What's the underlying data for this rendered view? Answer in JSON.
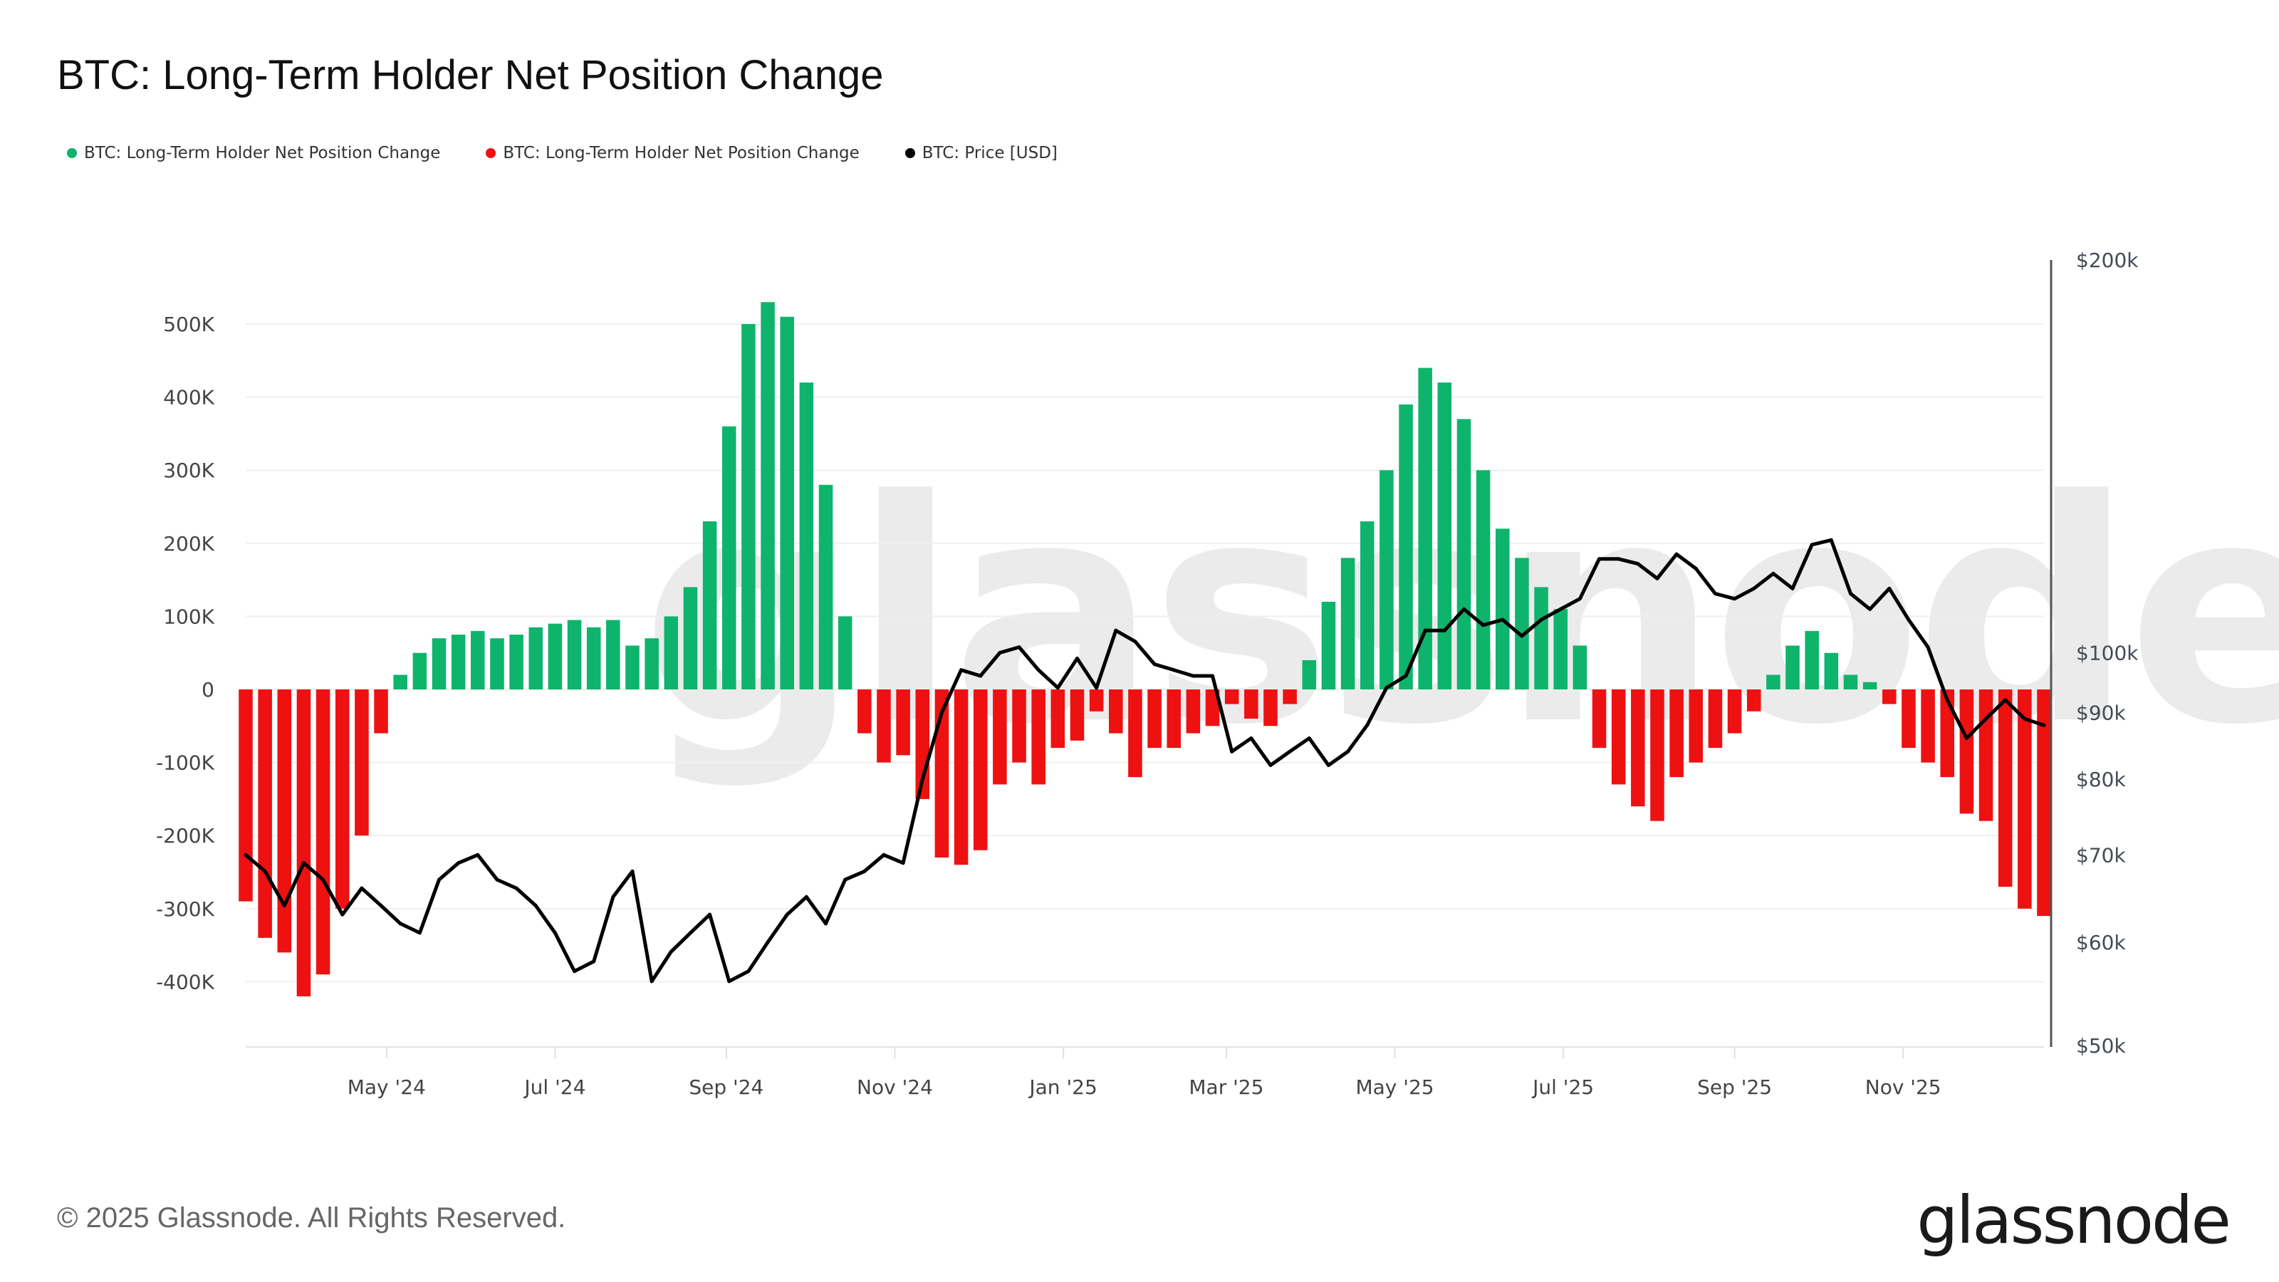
{
  "title": "BTC: Long-Term Holder Net Position Change",
  "legend": [
    {
      "label": "BTC: Long-Term Holder Net Position Change",
      "color": "#0fb46c"
    },
    {
      "label": "BTC: Long-Term Holder Net Position Change",
      "color": "#ee1111"
    },
    {
      "label": "BTC: Price [USD]",
      "color": "#000000"
    }
  ],
  "footer": "© 2025 Glassnode. All Rights Reserved.",
  "logo": "glassnode",
  "watermark": "glassnode",
  "chart_data": {
    "type": "bar",
    "title": "BTC: Long-Term Holder Net Position Change",
    "xlim": [
      "2024-03-11",
      "2025-12-22"
    ],
    "x_ticks": [
      {
        "date": "2024-05-01",
        "label": "May '24"
      },
      {
        "date": "2024-07-01",
        "label": "Jul '24"
      },
      {
        "date": "2024-09-01",
        "label": "Sep '24"
      },
      {
        "date": "2024-11-01",
        "label": "Nov '24"
      },
      {
        "date": "2025-01-01",
        "label": "Jan '25"
      },
      {
        "date": "2025-03-01",
        "label": "Mar '25"
      },
      {
        "date": "2025-05-01",
        "label": "May '25"
      },
      {
        "date": "2025-07-01",
        "label": "Jul '25"
      },
      {
        "date": "2025-09-01",
        "label": "Sep '25"
      },
      {
        "date": "2025-11-01",
        "label": "Nov '25"
      }
    ],
    "y_left": {
      "ylim": [
        -490000,
        600000
      ],
      "ticks": [
        {
          "v": 500000,
          "label": "500K"
        },
        {
          "v": 400000,
          "label": "400K"
        },
        {
          "v": 300000,
          "label": "300K"
        },
        {
          "v": 200000,
          "label": "200K"
        },
        {
          "v": 100000,
          "label": "100K"
        },
        {
          "v": 0,
          "label": "0"
        },
        {
          "v": -100000,
          "label": "-100K"
        },
        {
          "v": -200000,
          "label": "-200K"
        },
        {
          "v": -300000,
          "label": "-300K"
        },
        {
          "v": -400000,
          "label": "-400K"
        }
      ]
    },
    "y_right": {
      "scale": "log",
      "ylim": [
        50000,
        200000
      ],
      "ticks": [
        {
          "v": 200000,
          "label": "$200k"
        },
        {
          "v": 100000,
          "label": "$100k"
        },
        {
          "v": 90000,
          "label": "$90k"
        },
        {
          "v": 80000,
          "label": "$80k"
        },
        {
          "v": 70000,
          "label": "$70k"
        },
        {
          "v": 60000,
          "label": "$60k"
        },
        {
          "v": 50000,
          "label": "$50k"
        }
      ]
    },
    "grid": true,
    "legend_position": "top-left",
    "start_date": "2024-03-11",
    "interval_days": 7,
    "series": [
      {
        "name": "BTC: Long-Term Holder Net Position Change",
        "type": "bar",
        "positive_color": "#0fb46c",
        "negative_color": "#ee1111",
        "values": [
          -290000,
          -340000,
          -360000,
          -420000,
          -390000,
          -300000,
          -200000,
          -60000,
          20000,
          50000,
          70000,
          75000,
          80000,
          70000,
          75000,
          85000,
          90000,
          95000,
          85000,
          95000,
          60000,
          70000,
          100000,
          140000,
          230000,
          360000,
          500000,
          530000,
          510000,
          420000,
          280000,
          100000,
          -60000,
          -100000,
          -90000,
          -150000,
          -230000,
          -240000,
          -220000,
          -130000,
          -100000,
          -130000,
          -80000,
          -70000,
          -30000,
          -60000,
          -120000,
          -80000,
          -80000,
          -60000,
          -50000,
          -20000,
          -40000,
          -50000,
          -20000,
          40000,
          120000,
          180000,
          230000,
          300000,
          390000,
          440000,
          420000,
          370000,
          300000,
          220000,
          180000,
          140000,
          110000,
          60000,
          -80000,
          -130000,
          -160000,
          -180000,
          -120000,
          -100000,
          -80000,
          -60000,
          -30000,
          20000,
          60000,
          80000,
          50000,
          20000,
          10000,
          -20000,
          -80000,
          -100000,
          -120000,
          -170000,
          -180000,
          -270000,
          -300000,
          -310000
        ]
      },
      {
        "name": "BTC: Price [USD]",
        "type": "line",
        "color": "#000000",
        "axis": "right",
        "values": [
          70000,
          68000,
          64000,
          69000,
          67000,
          63000,
          66000,
          64000,
          62000,
          61000,
          67000,
          69000,
          70000,
          67000,
          66000,
          64000,
          61000,
          57000,
          58000,
          65000,
          68000,
          56000,
          59000,
          61000,
          63000,
          56000,
          57000,
          60000,
          63000,
          65000,
          62000,
          67000,
          68000,
          70000,
          69000,
          80000,
          90000,
          97000,
          96000,
          100000,
          101000,
          97000,
          94000,
          99000,
          94000,
          104000,
          102000,
          98000,
          97000,
          96000,
          96000,
          84000,
          86000,
          82000,
          84000,
          86000,
          82000,
          84000,
          88000,
          94000,
          96000,
          104000,
          104000,
          108000,
          105000,
          106000,
          103000,
          106000,
          108000,
          110000,
          118000,
          118000,
          117000,
          114000,
          119000,
          116000,
          111000,
          110000,
          112000,
          115000,
          112000,
          121000,
          122000,
          111000,
          108000,
          112000,
          106000,
          101000,
          92000,
          86000,
          89000,
          92000,
          89000,
          88000
        ]
      }
    ]
  }
}
